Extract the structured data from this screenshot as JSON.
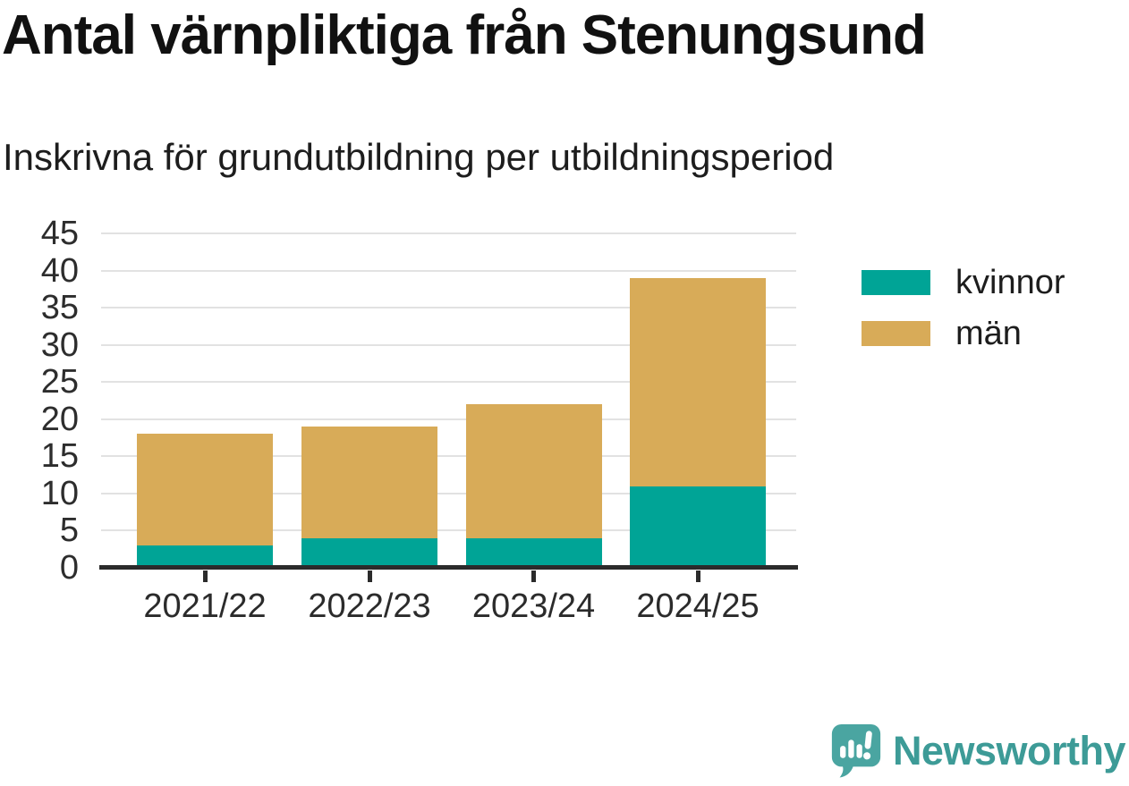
{
  "header": {
    "title": "Antal värnpliktiga från Stenungsund",
    "subtitle": "Inskrivna för grundutbildning per utbildningsperiod"
  },
  "chart_data": {
    "type": "bar",
    "stacked": true,
    "title": "Antal värnpliktiga från Stenungsund",
    "subtitle": "Inskrivna för grundutbildning per utbildningsperiod",
    "categories": [
      "2021/22",
      "2022/23",
      "2023/24",
      "2024/25"
    ],
    "series": [
      {
        "name": "kvinnor",
        "color": "#00a496",
        "values": [
          3,
          4,
          4,
          11
        ]
      },
      {
        "name": "män",
        "color": "#d8ab58",
        "values": [
          15,
          15,
          18,
          28
        ]
      }
    ],
    "stack_totals": [
      18,
      19,
      22,
      39
    ],
    "xlabel": "",
    "ylabel": "",
    "ylim": [
      0,
      45
    ],
    "ytick_step": 5,
    "grid": "horizontal",
    "legend_position": "right"
  },
  "branding": {
    "name": "Newsworthy"
  },
  "colors": {
    "series_kvinnor": "#00a496",
    "series_man": "#d8ab58",
    "axis": "#2b2b2b",
    "gridline": "#e2e2e2",
    "title_text": "#111111",
    "body_text": "#1d1d1d",
    "brand_text": "#3d9b97",
    "brand_mark": "#4aa5a1"
  }
}
